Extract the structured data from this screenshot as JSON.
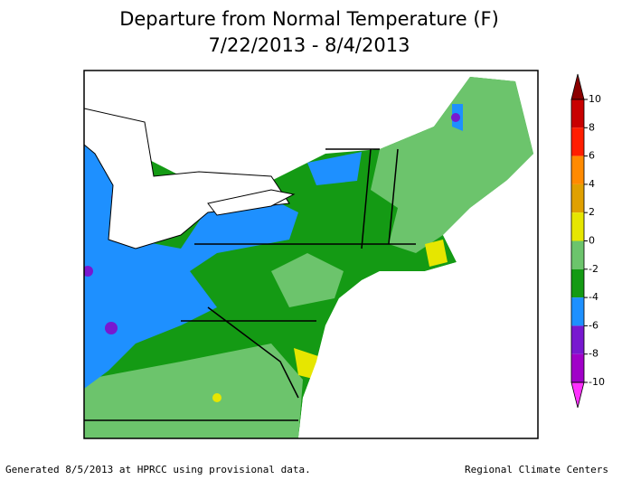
{
  "title": "Departure from Normal Temperature (F)",
  "subtitle": "7/22/2013 - 8/4/2013",
  "legend": {
    "ticks": [
      10,
      8,
      6,
      4,
      2,
      0,
      -2,
      -4,
      -6,
      -8,
      -10
    ],
    "colors": [
      "#8b0000",
      "#c80000",
      "#ff1e00",
      "#ff8a00",
      "#e0a000",
      "#e6e600",
      "#6cc46c",
      "#149a14",
      "#1e90ff",
      "#7818d0",
      "#a000c8",
      "#ff30ff"
    ]
  },
  "footer": {
    "left": "Generated 8/5/2013 at HPRCC using provisional data.",
    "right": "Regional Climate Centers"
  }
}
